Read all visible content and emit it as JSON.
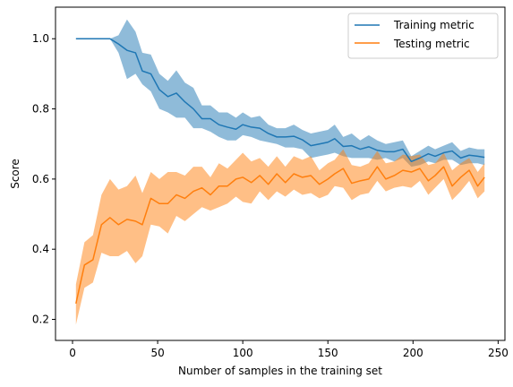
{
  "chart_data": {
    "type": "line",
    "title": "",
    "xlabel": "Number of samples in the training set",
    "ylabel": "Score",
    "xlim": [
      -10,
      254
    ],
    "ylim": [
      0.14,
      1.09
    ],
    "xticks": [
      0,
      50,
      100,
      150,
      200,
      250
    ],
    "yticks": [
      0.2,
      0.4,
      0.6,
      0.8,
      1.0
    ],
    "xtick_labels": [
      "0",
      "50",
      "100",
      "150",
      "200",
      "250"
    ],
    "ytick_labels": [
      "0.2",
      "0.4",
      "0.6",
      "0.8",
      "1.0"
    ],
    "grid": false,
    "legend_position": "top-right",
    "x": [
      2,
      7,
      12,
      17,
      22,
      27,
      32,
      37,
      41,
      46,
      51,
      56,
      61,
      66,
      71,
      76,
      81,
      86,
      91,
      96,
      100,
      105,
      110,
      115,
      120,
      125,
      130,
      135,
      140,
      145,
      150,
      154,
      159,
      164,
      169,
      174,
      179,
      184,
      189,
      194,
      199,
      204,
      209,
      213,
      218,
      223,
      228,
      233,
      238,
      242
    ],
    "series": [
      {
        "name": "Training metric",
        "color": "#1f77b4",
        "band_color": "#1f77b4",
        "values": [
          1.0,
          1.0,
          1.0,
          1.0,
          1.0,
          0.985,
          0.967,
          0.96,
          0.908,
          0.9,
          0.855,
          0.835,
          0.845,
          0.82,
          0.8,
          0.772,
          0.772,
          0.755,
          0.748,
          0.742,
          0.755,
          0.748,
          0.745,
          0.73,
          0.72,
          0.72,
          0.722,
          0.712,
          0.695,
          0.7,
          0.705,
          0.715,
          0.693,
          0.695,
          0.685,
          0.692,
          0.682,
          0.678,
          0.678,
          0.685,
          0.65,
          0.66,
          0.672,
          0.665,
          0.675,
          0.68,
          0.66,
          0.668,
          0.665,
          0.662
        ],
        "lower": [
          1.0,
          1.0,
          1.0,
          1.0,
          1.0,
          0.96,
          0.885,
          0.9,
          0.87,
          0.85,
          0.8,
          0.79,
          0.775,
          0.775,
          0.745,
          0.745,
          0.735,
          0.72,
          0.71,
          0.71,
          0.725,
          0.72,
          0.71,
          0.705,
          0.7,
          0.69,
          0.69,
          0.685,
          0.66,
          0.665,
          0.67,
          0.675,
          0.665,
          0.66,
          0.66,
          0.66,
          0.655,
          0.66,
          0.65,
          0.66,
          0.635,
          0.64,
          0.65,
          0.645,
          0.655,
          0.655,
          0.64,
          0.645,
          0.645,
          0.64
        ],
        "upper": [
          1.0,
          1.0,
          1.0,
          1.0,
          1.0,
          1.01,
          1.055,
          1.02,
          0.96,
          0.955,
          0.9,
          0.88,
          0.91,
          0.875,
          0.86,
          0.81,
          0.81,
          0.79,
          0.79,
          0.775,
          0.79,
          0.775,
          0.78,
          0.755,
          0.745,
          0.745,
          0.755,
          0.74,
          0.73,
          0.735,
          0.74,
          0.755,
          0.72,
          0.73,
          0.71,
          0.725,
          0.71,
          0.7,
          0.705,
          0.71,
          0.665,
          0.68,
          0.695,
          0.685,
          0.695,
          0.705,
          0.68,
          0.69,
          0.685,
          0.685
        ]
      },
      {
        "name": "Testing metric",
        "color": "#ff7f0e",
        "band_color": "#ff7f0e",
        "values": [
          0.245,
          0.355,
          0.37,
          0.47,
          0.49,
          0.47,
          0.485,
          0.48,
          0.47,
          0.545,
          0.53,
          0.53,
          0.555,
          0.545,
          0.565,
          0.575,
          0.555,
          0.58,
          0.58,
          0.6,
          0.605,
          0.59,
          0.61,
          0.585,
          0.615,
          0.59,
          0.615,
          0.605,
          0.61,
          0.585,
          0.6,
          0.615,
          0.63,
          0.588,
          0.595,
          0.6,
          0.635,
          0.6,
          0.61,
          0.625,
          0.62,
          0.63,
          0.595,
          0.61,
          0.635,
          0.58,
          0.605,
          0.625,
          0.58,
          0.605
        ],
        "lower": [
          0.185,
          0.29,
          0.305,
          0.39,
          0.38,
          0.38,
          0.395,
          0.36,
          0.38,
          0.47,
          0.465,
          0.445,
          0.495,
          0.48,
          0.5,
          0.52,
          0.51,
          0.52,
          0.53,
          0.55,
          0.535,
          0.53,
          0.565,
          0.54,
          0.565,
          0.55,
          0.57,
          0.555,
          0.56,
          0.545,
          0.555,
          0.58,
          0.575,
          0.54,
          0.555,
          0.56,
          0.595,
          0.565,
          0.575,
          0.58,
          0.575,
          0.595,
          0.555,
          0.575,
          0.6,
          0.54,
          0.565,
          0.595,
          0.545,
          0.565
        ],
        "upper": [
          0.3,
          0.42,
          0.44,
          0.555,
          0.6,
          0.57,
          0.58,
          0.61,
          0.56,
          0.62,
          0.6,
          0.62,
          0.62,
          0.61,
          0.635,
          0.635,
          0.605,
          0.645,
          0.63,
          0.655,
          0.675,
          0.65,
          0.66,
          0.635,
          0.665,
          0.635,
          0.665,
          0.655,
          0.665,
          0.625,
          0.645,
          0.655,
          0.685,
          0.64,
          0.635,
          0.645,
          0.68,
          0.645,
          0.65,
          0.67,
          0.665,
          0.67,
          0.64,
          0.645,
          0.675,
          0.625,
          0.645,
          0.66,
          0.62,
          0.645
        ]
      }
    ]
  }
}
